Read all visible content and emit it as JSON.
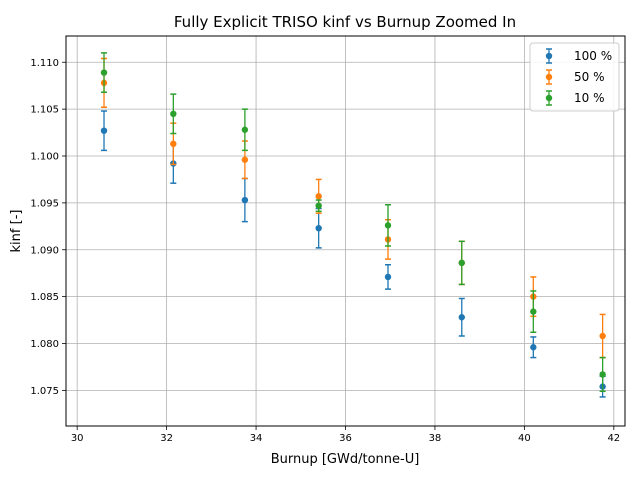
{
  "chart_data": {
    "type": "scatter",
    "title": "Fully Explicit TRISO kinf vs Burnup Zoomed In",
    "xlabel": "Burnup [GWd/tonne-U]",
    "ylabel": "kinf [-]",
    "xlim": [
      29.75,
      42.25
    ],
    "ylim": [
      1.0712,
      1.1128
    ],
    "x_ticks": [
      30,
      32,
      34,
      36,
      38,
      40,
      42
    ],
    "y_ticks": [
      1.075,
      1.08,
      1.085,
      1.09,
      1.095,
      1.1,
      1.105,
      1.11
    ],
    "grid": true,
    "legend_position": "top-right",
    "error_bars": true,
    "series": [
      {
        "name": "100 %",
        "color": "#1f77b4",
        "x": [
          30.6,
          32.15,
          33.75,
          35.4,
          36.95,
          38.6,
          40.2,
          41.75
        ],
        "y": [
          1.1027,
          1.0992,
          1.0953,
          1.0923,
          1.0871,
          1.0828,
          1.0796,
          1.0754
        ],
        "err": [
          0.0021,
          0.0021,
          0.0023,
          0.0021,
          0.0013,
          0.002,
          0.0011,
          0.0011
        ]
      },
      {
        "name": "50 %",
        "color": "#ff7f0e",
        "x": [
          30.6,
          32.15,
          33.75,
          35.4,
          36.95,
          38.6,
          40.2,
          41.75
        ],
        "y": [
          1.1078,
          1.1013,
          1.0996,
          1.0957,
          1.0911,
          1.0886,
          1.085,
          1.0808
        ],
        "err": [
          0.0026,
          0.0022,
          0.002,
          0.0018,
          0.0021,
          0.0023,
          0.0021,
          0.0023
        ]
      },
      {
        "name": "10 %",
        "color": "#2ca02c",
        "x": [
          30.6,
          32.15,
          33.75,
          35.4,
          36.95,
          38.6,
          40.2,
          41.75
        ],
        "y": [
          1.1089,
          1.1045,
          1.1028,
          1.0947,
          1.0926,
          1.0886,
          1.0834,
          1.0767
        ],
        "err": [
          0.0021,
          0.0021,
          0.0022,
          0.0006,
          0.0022,
          0.0023,
          0.0022,
          0.0018
        ]
      }
    ]
  }
}
